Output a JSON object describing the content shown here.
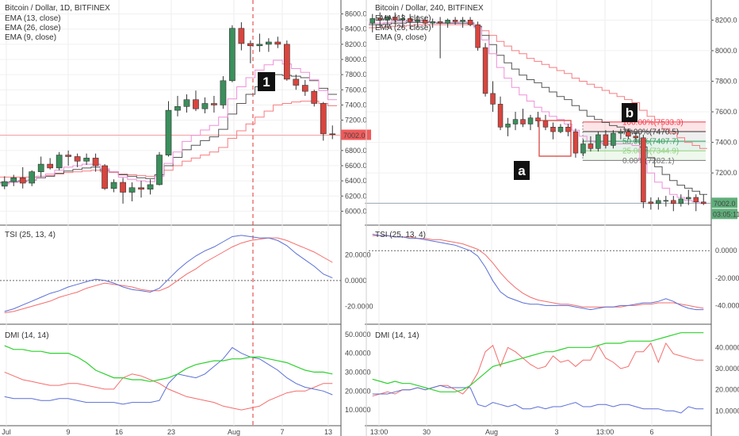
{
  "chart_data": [
    {
      "type": "line",
      "title": "Bitcoin / Dollar, 1D, BITFINEX",
      "legend": [
        "EMA (13, close)",
        "EMA (26, close)",
        "EMA (9, close)"
      ],
      "price_ticks": [
        "8600.0",
        "8400.0",
        "8200.0",
        "8000.0",
        "7800.0",
        "7600.0",
        "7400.0",
        "7200.0",
        "6800.0",
        "6600.0",
        "6400.0",
        "6200.0",
        "6000.0"
      ],
      "price_ylim": [
        5900,
        8700
      ],
      "last_price": "7002.0",
      "x_ticks": [
        "Jul",
        "9",
        "16",
        "23",
        "Aug",
        "7",
        "13"
      ],
      "marker": "1",
      "candles": [
        {
          "o": 6330,
          "h": 6460,
          "l": 6290,
          "c": 6390
        },
        {
          "o": 6390,
          "h": 6480,
          "l": 6330,
          "c": 6440
        },
        {
          "o": 6440,
          "h": 6580,
          "l": 6300,
          "c": 6370
        },
        {
          "o": 6370,
          "h": 6540,
          "l": 6330,
          "c": 6520
        },
        {
          "o": 6520,
          "h": 6720,
          "l": 6450,
          "c": 6620
        },
        {
          "o": 6620,
          "h": 6700,
          "l": 6550,
          "c": 6570
        },
        {
          "o": 6570,
          "h": 6780,
          "l": 6540,
          "c": 6740
        },
        {
          "o": 6740,
          "h": 6800,
          "l": 6600,
          "c": 6720
        },
        {
          "o": 6720,
          "h": 6760,
          "l": 6580,
          "c": 6660
        },
        {
          "o": 6660,
          "h": 6760,
          "l": 6610,
          "c": 6700
        },
        {
          "o": 6700,
          "h": 6760,
          "l": 6520,
          "c": 6600
        },
        {
          "o": 6600,
          "h": 6620,
          "l": 6280,
          "c": 6300
        },
        {
          "o": 6300,
          "h": 6420,
          "l": 6250,
          "c": 6380
        },
        {
          "o": 6380,
          "h": 6440,
          "l": 6100,
          "c": 6250
        },
        {
          "o": 6250,
          "h": 6380,
          "l": 6130,
          "c": 6310
        },
        {
          "o": 6310,
          "h": 6400,
          "l": 6180,
          "c": 6290
        },
        {
          "o": 6290,
          "h": 6420,
          "l": 6220,
          "c": 6350
        },
        {
          "o": 6350,
          "h": 6780,
          "l": 6340,
          "c": 6740
        },
        {
          "o": 6740,
          "h": 7450,
          "l": 6720,
          "c": 7330
        },
        {
          "o": 7330,
          "h": 7520,
          "l": 7250,
          "c": 7380
        },
        {
          "o": 7380,
          "h": 7540,
          "l": 7300,
          "c": 7470
        },
        {
          "o": 7470,
          "h": 7590,
          "l": 7320,
          "c": 7350
        },
        {
          "o": 7350,
          "h": 7500,
          "l": 7290,
          "c": 7420
        },
        {
          "o": 7420,
          "h": 7520,
          "l": 7300,
          "c": 7400
        },
        {
          "o": 7400,
          "h": 7780,
          "l": 7350,
          "c": 7720
        },
        {
          "o": 7720,
          "h": 8450,
          "l": 7700,
          "c": 8410
        },
        {
          "o": 8410,
          "h": 8490,
          "l": 8120,
          "c": 8210
        },
        {
          "o": 8210,
          "h": 8250,
          "l": 7950,
          "c": 8180
        },
        {
          "o": 8180,
          "h": 8340,
          "l": 8100,
          "c": 8200
        },
        {
          "o": 8200,
          "h": 8280,
          "l": 8100,
          "c": 8230
        },
        {
          "o": 8230,
          "h": 8300,
          "l": 8150,
          "c": 8200
        },
        {
          "o": 8200,
          "h": 8250,
          "l": 7720,
          "c": 7740
        },
        {
          "o": 7740,
          "h": 7800,
          "l": 7600,
          "c": 7660
        },
        {
          "o": 7660,
          "h": 7730,
          "l": 7520,
          "c": 7580
        },
        {
          "o": 7580,
          "h": 7600,
          "l": 7380,
          "c": 7420
        },
        {
          "o": 7420,
          "h": 7440,
          "l": 6930,
          "c": 7020
        },
        {
          "o": 7020,
          "h": 7130,
          "l": 6950,
          "c": 7010
        }
      ],
      "ema13": [
        6380,
        6390,
        6400,
        6410,
        6440,
        6460,
        6500,
        6530,
        6550,
        6570,
        6580,
        6540,
        6520,
        6480,
        6460,
        6440,
        6430,
        6480,
        6600,
        6710,
        6810,
        6870,
        6930,
        6980,
        7080,
        7280,
        7420,
        7540,
        7640,
        7730,
        7800,
        7790,
        7780,
        7760,
        7720,
        7620,
        7540
      ],
      "ema26": [
        6450,
        6450,
        6450,
        6450,
        6460,
        6470,
        6490,
        6510,
        6520,
        6530,
        6540,
        6520,
        6510,
        6490,
        6480,
        6470,
        6460,
        6480,
        6540,
        6600,
        6660,
        6700,
        6740,
        6780,
        6840,
        6960,
        7060,
        7150,
        7240,
        7320,
        7400,
        7420,
        7440,
        7450,
        7450,
        7420,
        7390
      ],
      "ema9": [
        6360,
        6380,
        6390,
        6410,
        6460,
        6490,
        6540,
        6580,
        6600,
        6620,
        6620,
        6560,
        6520,
        6450,
        6420,
        6400,
        6390,
        6460,
        6630,
        6780,
        6920,
        7000,
        7070,
        7130,
        7240,
        7480,
        7640,
        7760,
        7860,
        7930,
        7990,
        7940,
        7880,
        7830,
        7730,
        7590,
        7470
      ],
      "tsi_ticks": [
        "20.0000",
        "0.0000",
        "-20.0000"
      ],
      "tsi_ylim": [
        -29,
        38
      ],
      "tsi": [
        -24,
        -22,
        -19,
        -16,
        -13,
        -10,
        -8,
        -5,
        -3,
        -1,
        1,
        0,
        -2,
        -5,
        -7,
        -8,
        -9,
        -6,
        1,
        8,
        14,
        19,
        23,
        26,
        30,
        34,
        35,
        34,
        33,
        33,
        31,
        27,
        21,
        16,
        11,
        5,
        2
      ],
      "tsi_signal": [
        -25,
        -24,
        -22,
        -20,
        -18,
        -16,
        -13,
        -11,
        -9,
        -6,
        -4,
        -2,
        -3,
        -4,
        -5,
        -7,
        -8,
        -8,
        -5,
        0,
        5,
        9,
        14,
        18,
        22,
        26,
        29,
        31,
        32,
        33,
        33,
        31,
        28,
        25,
        22,
        18,
        14
      ],
      "dmi_ticks": [
        "50.0000",
        "40.0000",
        "30.0000",
        "20.0000",
        "10.0000"
      ],
      "dmi_ylim": [
        5,
        52
      ],
      "dmi_adx": [
        44,
        42,
        42,
        41,
        41,
        40,
        40,
        40,
        38,
        35,
        31,
        29,
        27,
        27,
        26,
        26,
        25,
        26,
        27,
        29,
        32,
        34,
        35,
        36,
        36,
        37,
        37,
        38,
        38,
        37,
        36,
        35,
        33,
        31,
        30,
        30,
        29
      ],
      "dmi_plus": [
        17,
        16,
        16,
        16,
        15,
        15,
        16,
        16,
        15,
        14,
        14,
        14,
        14,
        13,
        14,
        14,
        14,
        15,
        24,
        29,
        28,
        27,
        29,
        33,
        37,
        43,
        40,
        38,
        37,
        34,
        31,
        27,
        24,
        22,
        21,
        20,
        18
      ],
      "dmi_minus": [
        30,
        28,
        26,
        25,
        24,
        23,
        23,
        24,
        24,
        23,
        22,
        21,
        21,
        27,
        29,
        28,
        26,
        24,
        21,
        19,
        17,
        16,
        15,
        14,
        12,
        11,
        10,
        11,
        12,
        15,
        17,
        19,
        20,
        20,
        22,
        24,
        24
      ]
    },
    {
      "type": "line",
      "title": "Bitcoin / Dollar, 240, BITFINEX",
      "legend": [
        "EMA (13, close)",
        "EMA (26, close)",
        "EMA (9, close)"
      ],
      "price_ticks": [
        "8200.0",
        "8000.0",
        "7800.0",
        "7600.0",
        "7400.0",
        "7200.0"
      ],
      "price_ylim": [
        6900,
        8290
      ],
      "last_price": "7002.0",
      "countdown": "03:05:11",
      "x_ticks": [
        "13:00",
        "30",
        "Aug",
        "3",
        "13:00",
        "6"
      ],
      "fib_levels": [
        {
          "label": "100.00%(7533.3)",
          "value": 7533.3,
          "color": "#f23645"
        },
        {
          "label": "75.00%(7470.5)",
          "value": 7470.5,
          "color": "#333333"
        },
        {
          "label": "50.00%(7407.7)",
          "value": 7407.7,
          "color": "#2e9e5b"
        },
        {
          "label": "25.00%(7344.9)",
          "value": 7344.9,
          "color": "#8fd07f"
        },
        {
          "label": "0.00%(7282.1)",
          "value": 7282.1,
          "color": "#777777"
        }
      ],
      "markers": [
        "a",
        "b"
      ],
      "candles": [
        {
          "o": 8180,
          "h": 8240,
          "l": 8120,
          "c": 8210
        },
        {
          "o": 8210,
          "h": 8250,
          "l": 8150,
          "c": 8200
        },
        {
          "o": 8200,
          "h": 8230,
          "l": 8150,
          "c": 8220
        },
        {
          "o": 8220,
          "h": 8250,
          "l": 8170,
          "c": 8200
        },
        {
          "o": 8200,
          "h": 8240,
          "l": 8150,
          "c": 8210
        },
        {
          "o": 8210,
          "h": 8240,
          "l": 8140,
          "c": 8190
        },
        {
          "o": 8190,
          "h": 8230,
          "l": 8150,
          "c": 8200
        },
        {
          "o": 8200,
          "h": 8220,
          "l": 8160,
          "c": 8180
        },
        {
          "o": 8180,
          "h": 8210,
          "l": 8150,
          "c": 8190
        },
        {
          "o": 8190,
          "h": 8220,
          "l": 7950,
          "c": 8180
        },
        {
          "o": 8180,
          "h": 8210,
          "l": 8150,
          "c": 8200
        },
        {
          "o": 8200,
          "h": 8220,
          "l": 8170,
          "c": 8190
        },
        {
          "o": 8190,
          "h": 8220,
          "l": 8150,
          "c": 8200
        },
        {
          "o": 8200,
          "h": 8220,
          "l": 8160,
          "c": 8170
        },
        {
          "o": 8170,
          "h": 8190,
          "l": 8000,
          "c": 8020
        },
        {
          "o": 8020,
          "h": 8050,
          "l": 7700,
          "c": 7720
        },
        {
          "o": 7720,
          "h": 7800,
          "l": 7600,
          "c": 7650
        },
        {
          "o": 7650,
          "h": 7700,
          "l": 7480,
          "c": 7500
        },
        {
          "o": 7500,
          "h": 7560,
          "l": 7440,
          "c": 7520
        },
        {
          "o": 7520,
          "h": 7600,
          "l": 7480,
          "c": 7550
        },
        {
          "o": 7550,
          "h": 7620,
          "l": 7500,
          "c": 7520
        },
        {
          "o": 7520,
          "h": 7580,
          "l": 7480,
          "c": 7560
        },
        {
          "o": 7560,
          "h": 7600,
          "l": 7500,
          "c": 7540
        },
        {
          "o": 7540,
          "h": 7580,
          "l": 7480,
          "c": 7500
        },
        {
          "o": 7500,
          "h": 7530,
          "l": 7420,
          "c": 7470
        },
        {
          "o": 7470,
          "h": 7520,
          "l": 7460,
          "c": 7500
        },
        {
          "o": 7500,
          "h": 7520,
          "l": 7440,
          "c": 7470
        },
        {
          "o": 7470,
          "h": 7490,
          "l": 7300,
          "c": 7330
        },
        {
          "o": 7330,
          "h": 7420,
          "l": 7310,
          "c": 7390
        },
        {
          "o": 7390,
          "h": 7440,
          "l": 7340,
          "c": 7360
        },
        {
          "o": 7360,
          "h": 7470,
          "l": 7340,
          "c": 7450
        },
        {
          "o": 7450,
          "h": 7480,
          "l": 7360,
          "c": 7380
        },
        {
          "o": 7380,
          "h": 7480,
          "l": 7360,
          "c": 7460
        },
        {
          "o": 7460,
          "h": 7490,
          "l": 7420,
          "c": 7470
        },
        {
          "o": 7470,
          "h": 7490,
          "l": 7420,
          "c": 7440
        },
        {
          "o": 7440,
          "h": 7470,
          "l": 7400,
          "c": 7430
        },
        {
          "o": 7430,
          "h": 7450,
          "l": 6970,
          "c": 7010
        },
        {
          "o": 7010,
          "h": 7040,
          "l": 6960,
          "c": 7000
        },
        {
          "o": 7000,
          "h": 7040,
          "l": 6960,
          "c": 7020
        },
        {
          "o": 7020,
          "h": 7050,
          "l": 6980,
          "c": 7020
        },
        {
          "o": 7020,
          "h": 7050,
          "l": 6950,
          "c": 7000
        },
        {
          "o": 7000,
          "h": 7060,
          "l": 6980,
          "c": 7030
        },
        {
          "o": 7030,
          "h": 7090,
          "l": 6990,
          "c": 7040
        },
        {
          "o": 7040,
          "h": 7060,
          "l": 6950,
          "c": 7010
        },
        {
          "o": 7010,
          "h": 7060,
          "l": 6990,
          "c": 7000
        }
      ],
      "ema13": [
        8170,
        8170,
        8175,
        8180,
        8180,
        8185,
        8185,
        8185,
        8185,
        8180,
        8180,
        8180,
        8180,
        8180,
        8160,
        8100,
        8040,
        7970,
        7920,
        7880,
        7840,
        7810,
        7790,
        7760,
        7730,
        7700,
        7680,
        7640,
        7610,
        7570,
        7550,
        7530,
        7510,
        7500,
        7480,
        7460,
        7370,
        7300,
        7240,
        7190,
        7150,
        7120,
        7100,
        7080,
        7060
      ],
      "ema26": [
        8150,
        8150,
        8155,
        8160,
        8160,
        8165,
        8170,
        8170,
        8170,
        8170,
        8170,
        8170,
        8170,
        8170,
        8160,
        8130,
        8100,
        8060,
        8030,
        8000,
        7980,
        7950,
        7930,
        7910,
        7890,
        7870,
        7850,
        7820,
        7800,
        7780,
        7760,
        7740,
        7720,
        7700,
        7680,
        7660,
        7610,
        7570,
        7530,
        7490,
        7460,
        7430,
        7400,
        7380,
        7360
      ],
      "ema9": [
        8180,
        8180,
        8185,
        8190,
        8190,
        8190,
        8190,
        8190,
        8185,
        8185,
        8185,
        8185,
        8190,
        8185,
        8150,
        8070,
        7980,
        7890,
        7820,
        7760,
        7710,
        7670,
        7630,
        7600,
        7570,
        7550,
        7520,
        7480,
        7440,
        7410,
        7400,
        7390,
        7390,
        7390,
        7390,
        7380,
        7280,
        7200,
        7140,
        7100,
        7060,
        7040,
        7020,
        7010,
        7000
      ],
      "tsi_ticks": [
        "0.0000",
        "-20.0000",
        "-40.0000"
      ],
      "tsi_ylim": [
        -49,
        14
      ],
      "tsi": [
        12,
        11,
        11,
        10,
        10,
        9,
        9,
        8,
        7,
        6,
        5,
        4,
        2,
        0,
        -4,
        -12,
        -22,
        -30,
        -34,
        -36,
        -38,
        -39,
        -39,
        -40,
        -40,
        -40,
        -40,
        -41,
        -42,
        -43,
        -42,
        -41,
        -41,
        -40,
        -40,
        -39,
        -38,
        -38,
        -37,
        -35,
        -37,
        -40,
        -42,
        -43,
        -43
      ],
      "tsi_signal": [
        11,
        11,
        11,
        10,
        10,
        10,
        9,
        9,
        8,
        8,
        7,
        6,
        5,
        3,
        1,
        -3,
        -9,
        -16,
        -22,
        -27,
        -31,
        -34,
        -36,
        -37,
        -38,
        -39,
        -39,
        -40,
        -41,
        -41,
        -41,
        -41,
        -41,
        -41,
        -40,
        -40,
        -39,
        -39,
        -38,
        -38,
        -38,
        -39,
        -40,
        -41,
        -42
      ],
      "dmi_ticks": [
        "40.0000",
        "30.0000",
        "20.0000",
        "10.0000"
      ],
      "dmi_ylim": [
        6,
        48
      ],
      "dmi_adx": [
        25,
        24,
        23,
        24,
        23,
        23,
        22,
        21,
        20,
        19,
        19,
        19,
        20,
        22,
        25,
        28,
        31,
        32,
        33,
        34,
        35,
        36,
        37,
        38,
        38,
        39,
        40,
        40,
        40,
        40,
        41,
        42,
        42,
        42,
        43,
        43,
        43,
        43,
        44,
        45,
        46,
        47,
        47,
        47,
        47
      ],
      "dmi_plus": [
        18,
        18,
        18,
        19,
        20,
        20,
        21,
        20,
        21,
        22,
        21,
        21,
        21,
        21,
        13,
        12,
        14,
        13,
        12,
        13,
        11,
        11,
        12,
        11,
        12,
        12,
        13,
        14,
        12,
        12,
        13,
        13,
        12,
        13,
        13,
        12,
        11,
        11,
        11,
        10,
        10,
        9,
        12,
        11,
        11
      ],
      "dmi_minus": [
        17,
        18,
        19,
        18,
        20,
        20,
        21,
        20,
        21,
        22,
        22,
        20,
        18,
        22,
        28,
        38,
        41,
        31,
        40,
        38,
        35,
        32,
        30,
        31,
        36,
        33,
        34,
        31,
        34,
        34,
        41,
        35,
        33,
        30,
        31,
        38,
        38,
        42,
        33,
        42,
        37,
        36,
        35,
        34,
        34
      ]
    }
  ]
}
